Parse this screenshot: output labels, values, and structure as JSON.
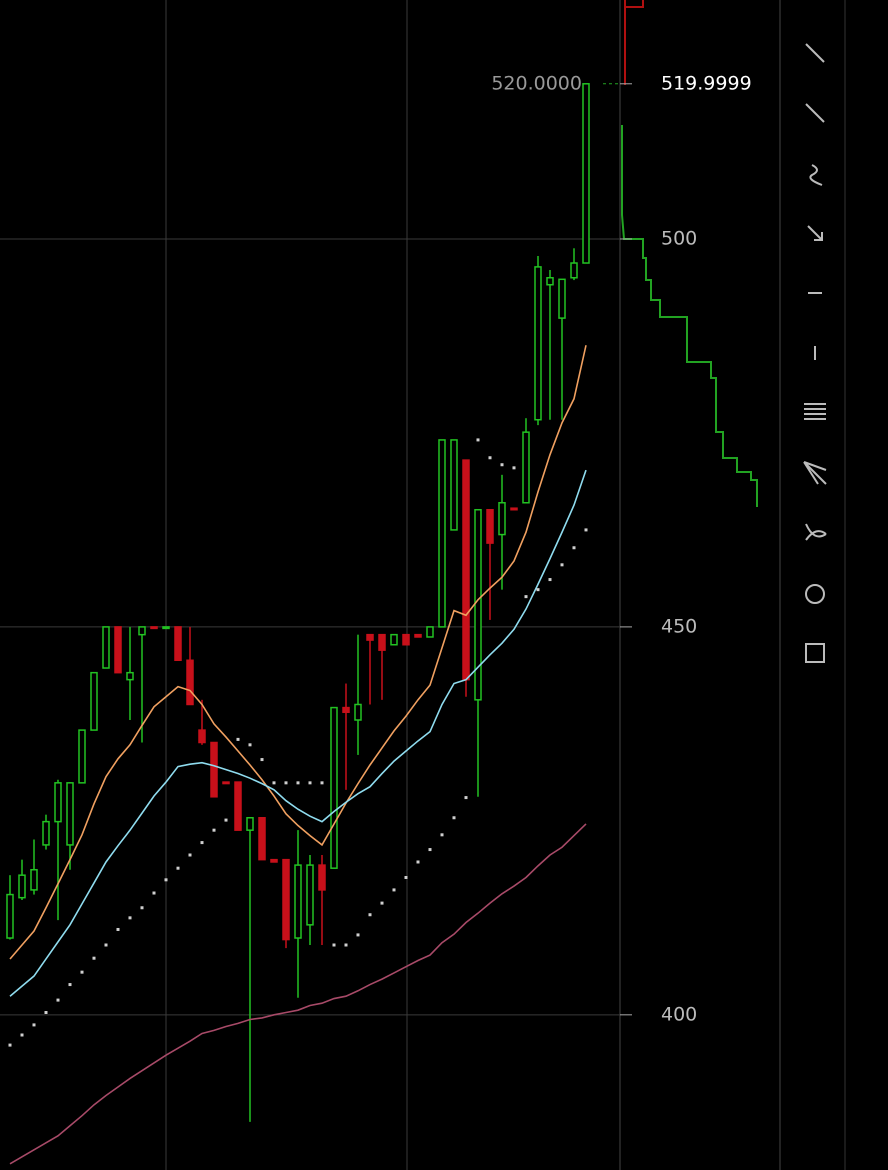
{
  "chart_data": {
    "type": "candlestick",
    "categories": [
      null,
      null,
      null,
      null,
      null,
      null,
      null,
      null,
      null,
      null,
      null,
      null,
      null,
      null,
      null,
      null,
      null,
      null,
      null,
      null,
      null,
      null,
      null,
      null,
      null,
      null,
      null,
      null,
      null,
      null,
      null,
      null,
      null,
      null,
      null,
      null,
      null,
      null,
      null,
      null,
      null,
      null,
      null,
      null,
      null,
      null,
      null,
      null,
      null
    ],
    "open": [
      409.9,
      415.1,
      416.1,
      421.9,
      424.9,
      421.9,
      429.9,
      436.7,
      444.7,
      450,
      443.2,
      449.0,
      450,
      449.9,
      450,
      445.7,
      436.7,
      435.1,
      430,
      430,
      423.8,
      425.4,
      420,
      420,
      409.9,
      411.6,
      419.3,
      418.9,
      439.6,
      438,
      449,
      449,
      447.7,
      449,
      449,
      448.7,
      450,
      462.5,
      471.5,
      440.6,
      465.1,
      461.9,
      465.3,
      466,
      476.7,
      494.1,
      489.8,
      495,
      496.9
    ],
    "high": [
      418.0,
      420,
      422.6,
      425.8,
      430.3,
      430,
      436.7,
      444.1,
      450,
      450,
      450,
      450,
      450,
      450,
      450,
      450,
      440.6,
      435.1,
      430,
      430,
      425.4,
      425.4,
      420,
      420,
      423.8,
      420.6,
      420.6,
      439.6,
      442.7,
      449,
      449,
      449,
      449,
      449,
      449,
      450,
      474.1,
      474.1,
      471.5,
      465.1,
      465.1,
      469.6,
      465.3,
      476.9,
      497.8,
      496,
      494.8,
      498.8,
      520
    ],
    "low": [
      409.7,
      414.8,
      415.5,
      421.3,
      412.2,
      418.7,
      429.9,
      436.7,
      444.7,
      444.1,
      438.0,
      435.1,
      449.9,
      449.9,
      445.7,
      440,
      434.8,
      428.1,
      429.9,
      423.8,
      386.2,
      420,
      419.7,
      408.6,
      402.2,
      409,
      409,
      418.9,
      429,
      433.5,
      440,
      440.6,
      447.7,
      447.7,
      448.7,
      448.7,
      450,
      462.5,
      441,
      428.1,
      450.9,
      454.8,
      465.1,
      466,
      476,
      476.7,
      476.7,
      494.7,
      496.9
    ],
    "close": [
      415.5,
      418.0,
      418.7,
      424.9,
      429.9,
      429.9,
      436.7,
      444.1,
      450,
      444.1,
      444.1,
      450,
      449.9,
      450,
      445.7,
      440,
      435.1,
      428.1,
      429.9,
      423.8,
      425.4,
      420,
      419.7,
      409.7,
      419.3,
      419.3,
      416.1,
      439.6,
      439,
      440,
      448.3,
      447,
      449,
      447.7,
      448.7,
      450,
      474.1,
      474.1,
      443.2,
      465.1,
      460.8,
      466,
      465.1,
      475.1,
      496.4,
      495,
      494.8,
      496.9,
      520
    ],
    "up_color": "#22c322",
    "down_color": "#c8101a",
    "overlays": [
      {
        "color": "#f0a060",
        "values": [
          407.2,
          409.0,
          410.8,
          413.8,
          416.9,
          420,
          423.2,
          427.2,
          430.7,
          433.0,
          434.8,
          437.3,
          439.7,
          441.0,
          442.3,
          441.8,
          440.0,
          437.5,
          435.8,
          434.0,
          432.2,
          430.3,
          428.2,
          425.9,
          424.4,
          423.1,
          421.9,
          424.6,
          427.3,
          429.8,
          432.2,
          434.4,
          436.6,
          438.5,
          440.6,
          442.5,
          447.3,
          452.1,
          451.5,
          453.5,
          455.0,
          456.4,
          458.5,
          462.2,
          467.4,
          472.2,
          476.3,
          479.4,
          486.3
        ]
      },
      {
        "color": "#8fdcef",
        "values": [
          402.4,
          403.7,
          405.0,
          407.2,
          409.4,
          411.6,
          414.3,
          417.0,
          419.7,
          421.8,
          423.8,
          426.0,
          428.2,
          430.0,
          432.0,
          432.3,
          432.5,
          432.1,
          431.6,
          431.1,
          430.5,
          429.8,
          429.0,
          427.6,
          426.5,
          425.6,
          424.9,
          426.2,
          427.4,
          428.5,
          429.4,
          431.1,
          432.7,
          434.0,
          435.3,
          436.5,
          440.0,
          442.7,
          443.2,
          444.8,
          446.4,
          447.9,
          449.7,
          452.3,
          455.5,
          458.8,
          462.2,
          465.7,
          470.2
        ]
      },
      {
        "color": "#a84a68",
        "values": [
          380.8,
          381.7,
          382.6,
          383.5,
          384.4,
          385.7,
          387.0,
          388.4,
          389.6,
          390.7,
          391.8,
          392.8,
          393.8,
          394.8,
          395.7,
          396.6,
          397.6,
          398.0,
          398.5,
          398.9,
          399.4,
          399.6,
          400.0,
          400.3,
          400.6,
          401.2,
          401.5,
          402.1,
          402.4,
          403.1,
          403.9,
          404.6,
          405.4,
          406.2,
          407.0,
          407.7,
          409.3,
          410.4,
          411.9,
          413.1,
          414.4,
          415.6,
          416.6,
          417.7,
          419.2,
          420.6,
          421.6,
          423.1,
          424.6
        ]
      }
    ],
    "dots": {
      "color": "#d0d0d0",
      "values": [
        396.1,
        397.4,
        398.7,
        400.3,
        401.9,
        403.9,
        405.5,
        407.3,
        409.0,
        411.0,
        412.5,
        413.8,
        415.7,
        417.4,
        418.9,
        420.6,
        422.2,
        423.8,
        425.1,
        435.5,
        434.8,
        432.9,
        429.9,
        429.9,
        429.9,
        429.9,
        429.9,
        409.0,
        409.0,
        410.3,
        412.9,
        414.4,
        416.1,
        417.7,
        419.7,
        421.3,
        423.2,
        425.4,
        428.0,
        474.1,
        471.8,
        470.9,
        470.5,
        453.9,
        454.8,
        456.1,
        458.0,
        460.2,
        462.5
      ]
    },
    "ylim": [
      380,
      530.8
    ],
    "yticks": [
      400,
      450,
      500
    ],
    "grid": true,
    "high_marker": {
      "value": 520,
      "label": "520.0000"
    },
    "last_price": 519.9999
  }
}
